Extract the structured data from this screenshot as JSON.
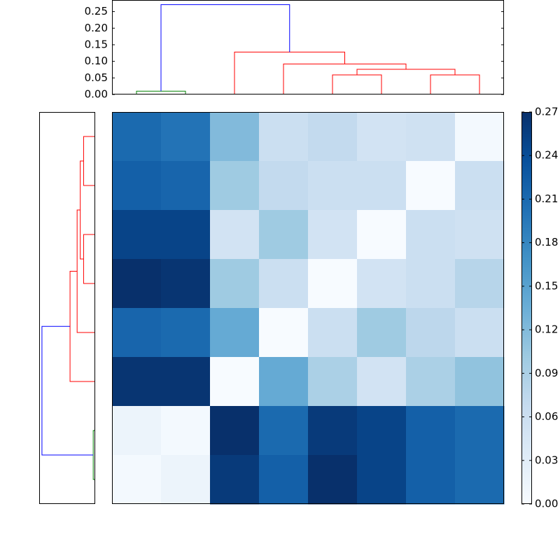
{
  "chart_data": [
    {
      "type": "dendrogram",
      "orientation": "top",
      "links": [
        {
          "leaf_pos": [
            5,
            5,
            15,
            15
          ],
          "height": [
            0,
            0.01,
            0.01,
            0
          ],
          "color": "#008000"
        },
        {
          "leaf_pos": [
            45,
            45,
            55,
            55
          ],
          "height": [
            0,
            0.059,
            0.059,
            0
          ],
          "color": "#ff0000"
        },
        {
          "leaf_pos": [
            65,
            65,
            75,
            75
          ],
          "height": [
            0,
            0.059,
            0.059,
            0
          ],
          "color": "#ff0000"
        },
        {
          "leaf_pos": [
            50,
            50,
            70,
            70
          ],
          "height": [
            0.059,
            0.076,
            0.076,
            0.059
          ],
          "color": "#ff0000"
        },
        {
          "leaf_pos": [
            35,
            35,
            60,
            60
          ],
          "height": [
            0,
            0.092,
            0.092,
            0.076
          ],
          "color": "#ff0000"
        },
        {
          "leaf_pos": [
            25,
            25,
            47.5,
            47.5
          ],
          "height": [
            0,
            0.128,
            0.128,
            0.092
          ],
          "color": "#ff0000"
        },
        {
          "leaf_pos": [
            10,
            10,
            36.25,
            36.25
          ],
          "height": [
            0.01,
            0.271,
            0.271,
            0.128
          ],
          "color": "#0000ff"
        }
      ],
      "xlim": [
        0,
        80
      ],
      "ylim": [
        0,
        0.285
      ],
      "yticks": [
        {
          "value": 0,
          "label": "0.00"
        },
        0.05,
        {
          "value": 0.1,
          "label": "0.10"
        },
        0.15,
        {
          "value": 0.2,
          "label": "0.20"
        },
        0.25
      ]
    },
    {
      "type": "dendrogram",
      "orientation": "left",
      "links": [
        {
          "leaf_pos": [
            5,
            5,
            15,
            15
          ],
          "height": [
            0,
            0.01,
            0.01,
            0
          ],
          "color": "#008000"
        },
        {
          "leaf_pos": [
            45,
            45,
            55,
            55
          ],
          "height": [
            0,
            0.059,
            0.059,
            0
          ],
          "color": "#ff0000"
        },
        {
          "leaf_pos": [
            65,
            65,
            75,
            75
          ],
          "height": [
            0,
            0.059,
            0.059,
            0
          ],
          "color": "#ff0000"
        },
        {
          "leaf_pos": [
            50,
            50,
            70,
            70
          ],
          "height": [
            0.059,
            0.076,
            0.076,
            0.059
          ],
          "color": "#ff0000"
        },
        {
          "leaf_pos": [
            35,
            35,
            60,
            60
          ],
          "height": [
            0,
            0.092,
            0.092,
            0.076
          ],
          "color": "#ff0000"
        },
        {
          "leaf_pos": [
            25,
            25,
            47.5,
            47.5
          ],
          "height": [
            0,
            0.128,
            0.128,
            0.092
          ],
          "color": "#ff0000"
        },
        {
          "leaf_pos": [
            10,
            10,
            36.25,
            36.25
          ],
          "height": [
            0.01,
            0.271,
            0.271,
            0.128
          ],
          "color": "#0000ff"
        }
      ],
      "xlim": [
        0.285,
        0
      ],
      "ylim": [
        0,
        80
      ]
    },
    {
      "type": "heatmap",
      "values": [
        [
          0.21,
          0.2,
          0.12,
          0.06,
          0.07,
          0.05,
          0.055,
          0.005
        ],
        [
          0.22,
          0.215,
          0.1,
          0.07,
          0.06,
          0.06,
          0.0,
          0.06
        ],
        [
          0.25,
          0.25,
          0.05,
          0.1,
          0.05,
          0.0,
          0.06,
          0.055
        ],
        [
          0.27,
          0.265,
          0.1,
          0.06,
          0.0,
          0.05,
          0.06,
          0.08
        ],
        [
          0.215,
          0.21,
          0.14,
          0.0,
          0.06,
          0.1,
          0.075,
          0.06
        ],
        [
          0.265,
          0.265,
          0.0,
          0.14,
          0.09,
          0.05,
          0.09,
          0.11
        ],
        [
          0.015,
          0.005,
          0.27,
          0.21,
          0.26,
          0.25,
          0.22,
          0.21
        ],
        [
          0.005,
          0.015,
          0.26,
          0.22,
          0.27,
          0.25,
          0.22,
          0.21
        ]
      ],
      "clim": [
        0,
        0.27
      ],
      "colormap": [
        "#f7fbff",
        "#deebf7",
        "#c6dbef",
        "#9ecae1",
        "#6baed6",
        "#4292c6",
        "#2171b5",
        "#08519c",
        "#08306b"
      ],
      "colorbar_ticks": [
        {
          "value": 0,
          "label": "0.00"
        },
        0.03,
        0.06,
        0.09,
        0.12,
        0.15,
        0.18,
        0.21,
        0.24,
        0.27
      ]
    }
  ]
}
